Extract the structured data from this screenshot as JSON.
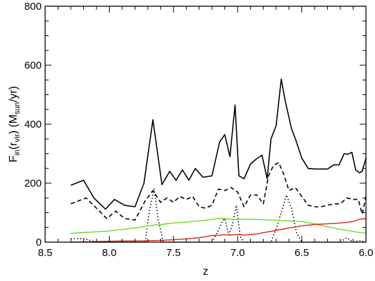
{
  "chart_data": {
    "type": "line",
    "title": "",
    "xlabel": "z",
    "ylabel": {
      "parts": [
        "F",
        "in",
        "(r",
        "vir",
        ") (M",
        "sun",
        "/yr)"
      ]
    },
    "xlim": [
      8.5,
      6.0
    ],
    "ylim": [
      0,
      800
    ],
    "x_reversed": true,
    "grid": false,
    "legend": "none",
    "xticks": [
      8.5,
      8.0,
      7.5,
      7.0,
      6.5,
      6.0
    ],
    "xtick_labels": [
      "8.5",
      "8.0",
      "7.5",
      "7.0",
      "6.5",
      "6.0"
    ],
    "yticks": [
      0,
      200,
      400,
      600,
      800
    ],
    "ytick_labels": [
      "0",
      "200",
      "400",
      "600",
      "800"
    ],
    "series": [
      {
        "style": "solid",
        "color": "#000000",
        "x": [
          8.3,
          8.2,
          8.12,
          8.03,
          7.96,
          7.88,
          7.8,
          7.73,
          7.66,
          7.59,
          7.53,
          7.48,
          7.43,
          7.38,
          7.33,
          7.27,
          7.2,
          7.14,
          7.1,
          7.06,
          7.02,
          6.99,
          6.95,
          6.9,
          6.86,
          6.81,
          6.77,
          6.74,
          6.7,
          6.66,
          6.63,
          6.58,
          6.55,
          6.5,
          6.45,
          6.4,
          6.35,
          6.3,
          6.25,
          6.21,
          6.17,
          6.14,
          6.11,
          6.08,
          6.05,
          6.03,
          6.0
        ],
        "y": [
          193,
          210,
          150,
          112,
          145,
          125,
          120,
          200,
          415,
          195,
          240,
          210,
          245,
          210,
          250,
          220,
          225,
          340,
          365,
          290,
          465,
          225,
          215,
          265,
          280,
          295,
          215,
          350,
          395,
          553,
          480,
          385,
          350,
          285,
          250,
          248,
          248,
          248,
          262,
          262,
          300,
          298,
          305,
          245,
          235,
          240,
          285
        ]
      },
      {
        "style": "dashed",
        "color": "#000000",
        "x": [
          8.3,
          8.24,
          8.18,
          8.1,
          8.02,
          7.95,
          7.88,
          7.8,
          7.72,
          7.66,
          7.6,
          7.55,
          7.5,
          7.45,
          7.4,
          7.35,
          7.3,
          7.25,
          7.2,
          7.15,
          7.1,
          7.05,
          7.0,
          6.95,
          6.9,
          6.85,
          6.8,
          6.76,
          6.72,
          6.68,
          6.64,
          6.6,
          6.55,
          6.5,
          6.45,
          6.4,
          6.35,
          6.3,
          6.25,
          6.2,
          6.15,
          6.1,
          6.06,
          6.03,
          6.0
        ],
        "y": [
          130,
          140,
          150,
          115,
          80,
          105,
          80,
          75,
          140,
          175,
          135,
          150,
          135,
          155,
          145,
          155,
          120,
          115,
          125,
          180,
          175,
          185,
          170,
          120,
          160,
          160,
          130,
          225,
          260,
          270,
          230,
          175,
          185,
          155,
          125,
          120,
          120,
          125,
          130,
          130,
          150,
          145,
          145,
          95,
          155
        ]
      },
      {
        "style": "dotted",
        "color": "#000000",
        "x": [
          8.3,
          8.2,
          8.1,
          8.0,
          7.9,
          7.8,
          7.72,
          7.69,
          7.65,
          7.62,
          7.58,
          7.5,
          7.4,
          7.3,
          7.2,
          7.15,
          7.12,
          7.1,
          7.07,
          7.04,
          7.01,
          6.98,
          6.95,
          6.9,
          6.8,
          6.74,
          6.7,
          6.66,
          6.62,
          6.58,
          6.54,
          6.5,
          6.45,
          6.4,
          6.3,
          6.2,
          6.15,
          6.1,
          6.05,
          6.0
        ],
        "y": [
          12,
          12,
          0,
          0,
          0,
          0,
          0,
          100,
          180,
          80,
          0,
          0,
          0,
          0,
          0,
          40,
          70,
          80,
          25,
          60,
          125,
          20,
          0,
          0,
          0,
          0,
          45,
          100,
          160,
          115,
          30,
          0,
          0,
          0,
          0,
          0,
          15,
          0,
          5,
          0
        ]
      },
      {
        "style": "solid",
        "color": "#66dd22",
        "x": [
          8.3,
          8.2,
          8.1,
          8.0,
          7.9,
          7.8,
          7.7,
          7.6,
          7.5,
          7.4,
          7.3,
          7.2,
          7.15,
          7.1,
          7.05,
          7.0,
          6.95,
          6.9,
          6.8,
          6.7,
          6.6,
          6.5,
          6.4,
          6.3,
          6.2,
          6.1,
          6.0
        ],
        "y": [
          30,
          33,
          35,
          38,
          43,
          48,
          55,
          60,
          65,
          68,
          72,
          77,
          80,
          80,
          78,
          77,
          78,
          78,
          76,
          74,
          72,
          70,
          62,
          52,
          44,
          36,
          30
        ]
      },
      {
        "style": "solid",
        "color": "#dd2211",
        "x": [
          8.3,
          8.2,
          8.1,
          8.0,
          7.9,
          7.8,
          7.7,
          7.6,
          7.5,
          7.4,
          7.3,
          7.2,
          7.1,
          7.05,
          7.0,
          6.95,
          6.9,
          6.85,
          6.8,
          6.7,
          6.6,
          6.5,
          6.4,
          6.3,
          6.2,
          6.1,
          6.05,
          6.0
        ],
        "y": [
          0,
          1,
          2,
          3,
          4,
          4,
          5,
          6,
          8,
          11,
          15,
          22,
          25,
          24,
          26,
          24,
          26,
          28,
          32,
          40,
          48,
          55,
          60,
          62,
          65,
          70,
          78,
          80
        ]
      }
    ]
  }
}
